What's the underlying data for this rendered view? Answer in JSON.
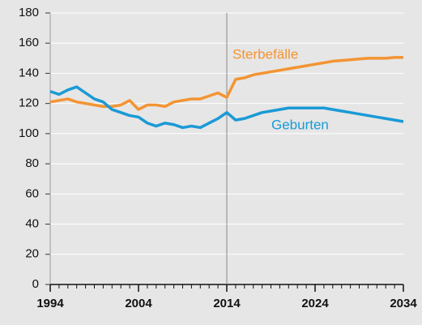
{
  "chart_data": {
    "type": "line",
    "x": [
      1994,
      1995,
      1996,
      1997,
      1998,
      1999,
      2000,
      2001,
      2002,
      2003,
      2004,
      2005,
      2006,
      2007,
      2008,
      2009,
      2010,
      2011,
      2012,
      2013,
      2014,
      2015,
      2016,
      2017,
      2018,
      2019,
      2020,
      2021,
      2022,
      2023,
      2024,
      2025,
      2026,
      2027,
      2028,
      2029,
      2030,
      2031,
      2032,
      2033,
      2034
    ],
    "series": [
      {
        "name": "Sterbefälle",
        "color": "#f39433",
        "values": [
          121,
          122,
          123,
          121,
          120,
          119,
          118,
          118,
          119,
          122,
          116,
          119,
          119,
          118,
          121,
          122,
          123,
          123,
          125,
          127,
          124,
          136,
          137,
          139,
          140,
          141,
          142,
          143,
          144,
          145,
          146,
          147,
          148,
          148.5,
          149,
          149.5,
          150,
          150,
          150,
          150.5,
          150.5
        ]
      },
      {
        "name": "Geburten",
        "color": "#1a9ad6",
        "values": [
          128,
          126,
          129,
          131,
          127,
          123,
          121,
          116,
          114,
          112,
          111,
          107,
          105,
          107,
          106,
          104,
          105,
          104,
          107,
          110,
          114,
          109,
          110,
          112,
          114,
          115,
          116,
          117,
          117,
          117,
          117,
          117,
          116,
          115,
          114,
          113,
          112,
          111,
          110,
          109,
          108
        ]
      }
    ],
    "xlim": [
      1994,
      2034
    ],
    "xticks": [
      1994,
      2004,
      2014,
      2024,
      2034
    ],
    "ylim": [
      0,
      180
    ],
    "yticks": [
      0,
      20,
      40,
      60,
      80,
      100,
      120,
      140,
      160,
      180
    ],
    "grid": true,
    "vline": 2014
  }
}
